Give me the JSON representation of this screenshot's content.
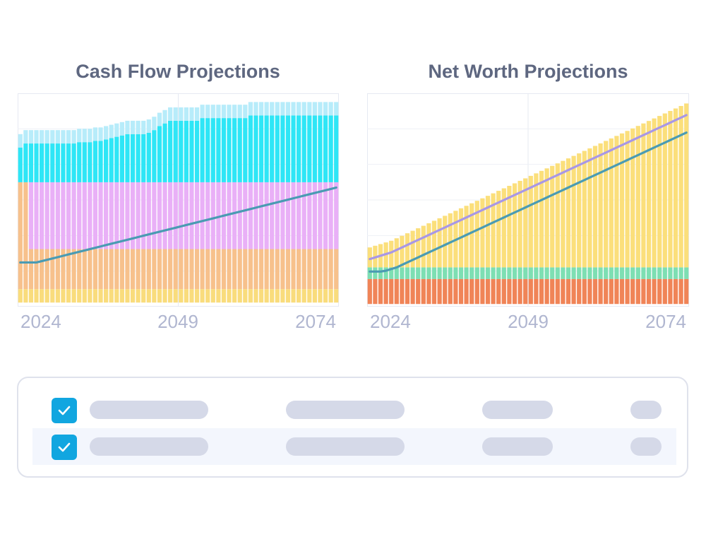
{
  "colors": {
    "accent_checkbox": "#11a6e0",
    "placeholder_bar": "#d5d9e8",
    "selected_row_bg": "#f3f6fd"
  },
  "chart_data": [
    {
      "type": "bar",
      "title": "Cash Flow Projections",
      "subtitle": "",
      "stacked": true,
      "x": [
        2024,
        2025,
        2026,
        2027,
        2028,
        2029,
        2030,
        2031,
        2032,
        2033,
        2034,
        2035,
        2036,
        2037,
        2038,
        2039,
        2040,
        2041,
        2042,
        2043,
        2044,
        2045,
        2046,
        2047,
        2048,
        2049,
        2050,
        2051,
        2052,
        2053,
        2054,
        2055,
        2056,
        2057,
        2058,
        2059,
        2060,
        2061,
        2062,
        2063,
        2064,
        2065,
        2066,
        2067,
        2068,
        2069,
        2070,
        2071,
        2072,
        2073,
        2074,
        2075,
        2076,
        2077,
        2078,
        2079,
        2080,
        2081,
        2082,
        2083
      ],
      "x_ticks": [
        "2024",
        "2049",
        "2074"
      ],
      "grid": true,
      "legend": "none",
      "positive_series": [
        {
          "color": "#f7c18c",
          "values": [
            50,
            50,
            0,
            0,
            0,
            0,
            0,
            0,
            0,
            0,
            0,
            0,
            0,
            0,
            0,
            0,
            0,
            0,
            0,
            0,
            0,
            0,
            0,
            0,
            0,
            0,
            0,
            0,
            0,
            0,
            0,
            0,
            0,
            0,
            0,
            0,
            0,
            0,
            0,
            0,
            0,
            0,
            0,
            0,
            0,
            0,
            0,
            0,
            0,
            0,
            0,
            0,
            0,
            0,
            0,
            0,
            0,
            0,
            0,
            0
          ]
        },
        {
          "color": "#e9b0f7",
          "values": [
            0,
            0,
            50,
            50,
            50,
            50,
            50,
            50,
            50,
            50,
            50,
            50,
            50,
            50,
            50,
            50,
            50,
            50,
            50,
            50,
            50,
            50,
            50,
            50,
            50,
            50,
            50,
            50,
            50,
            50,
            50,
            50,
            50,
            50,
            50,
            50,
            50,
            50,
            50,
            50,
            50,
            50,
            50,
            50,
            50,
            50,
            50,
            50,
            50,
            50,
            50,
            50,
            50,
            50,
            50,
            50,
            50,
            50,
            50,
            50
          ]
        },
        {
          "color": "#2ee6f6",
          "values": [
            26,
            29,
            29,
            29,
            29,
            29,
            29,
            29,
            29,
            29,
            29,
            30,
            30,
            30,
            31,
            31,
            32,
            33,
            34,
            35,
            36,
            36,
            36,
            36,
            37,
            39,
            42,
            44,
            46,
            46,
            46,
            46,
            46,
            46,
            48,
            48,
            48,
            48,
            48,
            48,
            48,
            48,
            48,
            50,
            50,
            50,
            50,
            50,
            50,
            50,
            50,
            50,
            50,
            50,
            50,
            50,
            50,
            50,
            50,
            50
          ]
        },
        {
          "color": "#5ab8f5",
          "values": [
            0,
            0,
            0,
            0,
            0,
            0,
            0,
            0,
            0,
            0,
            0,
            0,
            0,
            0,
            0,
            0,
            0,
            0,
            0,
            0,
            0,
            0,
            0,
            0,
            0,
            0,
            0,
            0,
            0,
            0,
            0,
            0,
            0,
            0,
            0,
            0,
            0,
            0,
            0,
            0,
            0,
            0,
            0,
            0,
            0,
            0,
            0,
            0,
            0,
            0,
            0,
            0,
            0,
            0,
            0,
            0,
            0,
            0,
            0,
            0
          ]
        },
        {
          "color": "#b7ecfa",
          "values": [
            10,
            10,
            10,
            10,
            10,
            10,
            10,
            10,
            10,
            10,
            10,
            10,
            10,
            10,
            10,
            10,
            10,
            10,
            10,
            10,
            10,
            10,
            10,
            10,
            10,
            10,
            10,
            10,
            10,
            10,
            10,
            10,
            10,
            10,
            10,
            10,
            10,
            10,
            10,
            10,
            10,
            10,
            10,
            10,
            10,
            10,
            10,
            10,
            10,
            10,
            10,
            10,
            10,
            10,
            10,
            10,
            10,
            10,
            10,
            10
          ]
        }
      ],
      "negative_series": [
        {
          "color": "#f7c18c",
          "values": [
            30,
            30,
            30,
            30,
            30,
            30,
            30,
            30,
            30,
            30,
            30,
            30,
            30,
            30,
            30,
            30,
            30,
            30,
            30,
            30,
            30,
            30,
            30,
            30,
            30,
            30,
            30,
            30,
            30,
            30,
            30,
            30,
            30,
            30,
            30,
            30,
            30,
            30,
            30,
            30,
            30,
            30,
            30,
            30,
            30,
            30,
            30,
            30,
            30,
            30,
            30,
            30,
            30,
            30,
            30,
            30,
            30,
            30,
            30,
            30
          ]
        },
        {
          "color": "#d97de8",
          "values": [
            0,
            0,
            0,
            0,
            0,
            0,
            0,
            0,
            0,
            0,
            0,
            0,
            0,
            0,
            0,
            0,
            0,
            0,
            0,
            0,
            0,
            0,
            0,
            0,
            0,
            0,
            0,
            0,
            0,
            0,
            0,
            0,
            0,
            0,
            0,
            0,
            0,
            0,
            0,
            0,
            0,
            0,
            0,
            0,
            0,
            0,
            0,
            0,
            0,
            0,
            0,
            0,
            0,
            0,
            0,
            0,
            0,
            0,
            0,
            0
          ]
        },
        {
          "color": "#f9dc7c",
          "values": [
            10,
            10,
            10,
            10,
            10,
            10,
            10,
            10,
            10,
            10,
            10,
            10,
            10,
            10,
            10,
            10,
            10,
            10,
            10,
            10,
            10,
            10,
            10,
            10,
            10,
            10,
            10,
            10,
            10,
            10,
            10,
            10,
            10,
            10,
            10,
            10,
            10,
            10,
            10,
            10,
            10,
            10,
            10,
            10,
            10,
            10,
            10,
            10,
            10,
            10,
            10,
            10,
            10,
            10,
            10,
            10,
            10,
            10,
            10,
            10
          ]
        }
      ],
      "line": {
        "color": "#4a9bb3",
        "values": [
          -10,
          -10,
          -10,
          -10,
          -9,
          -8,
          -7,
          -6,
          -5,
          -4,
          -3,
          -2,
          -1,
          0,
          1,
          2,
          3,
          4,
          5,
          6,
          7,
          8,
          9,
          10,
          11,
          12,
          13,
          14,
          15,
          16,
          17,
          18,
          19,
          20,
          21,
          22,
          23,
          24,
          25,
          26,
          27,
          28,
          29,
          30,
          31,
          32,
          33,
          34,
          35,
          36,
          37,
          38,
          39,
          40,
          41,
          42,
          43,
          44,
          45,
          46
        ]
      }
    },
    {
      "type": "bar",
      "title": "Net Worth Projections",
      "subtitle": "",
      "stacked": true,
      "x": [
        2024,
        2025,
        2026,
        2027,
        2028,
        2029,
        2030,
        2031,
        2032,
        2033,
        2034,
        2035,
        2036,
        2037,
        2038,
        2039,
        2040,
        2041,
        2042,
        2043,
        2044,
        2045,
        2046,
        2047,
        2048,
        2049,
        2050,
        2051,
        2052,
        2053,
        2054,
        2055,
        2056,
        2057,
        2058,
        2059,
        2060,
        2061,
        2062,
        2063,
        2064,
        2065,
        2066,
        2067,
        2068,
        2069,
        2070,
        2071,
        2072,
        2073,
        2074,
        2075,
        2076,
        2077,
        2078,
        2079,
        2080,
        2081,
        2082,
        2083
      ],
      "x_ticks": [
        "2024",
        "2049",
        "2074"
      ],
      "grid": true,
      "legend": "none",
      "positive_series": [
        {
          "color": "#7ddfb3",
          "values": [
            14,
            14,
            14,
            14,
            14,
            14,
            14,
            14,
            14,
            14,
            14,
            14,
            14,
            14,
            14,
            14,
            14,
            14,
            14,
            14,
            14,
            14,
            14,
            14,
            14,
            14,
            14,
            14,
            14,
            14,
            14,
            14,
            14,
            14,
            14,
            14,
            14,
            14,
            14,
            14,
            14,
            14,
            14,
            14,
            14,
            14,
            14,
            14,
            14,
            14,
            14,
            14,
            14,
            14,
            14,
            14,
            14,
            14,
            14,
            14
          ]
        },
        {
          "color": "#fbdf7b",
          "values": [
            24,
            26,
            28,
            30,
            32,
            35,
            38,
            41,
            44,
            47,
            50,
            53,
            56,
            59,
            62,
            65,
            68,
            71,
            74,
            77,
            80,
            83,
            86,
            89,
            92,
            95,
            98,
            101,
            104,
            107,
            110,
            113,
            116,
            119,
            122,
            125,
            128,
            131,
            134,
            137,
            140,
            143,
            146,
            149,
            152,
            155,
            158,
            161,
            164,
            167,
            170,
            173,
            176,
            179,
            182,
            185,
            188,
            191,
            194,
            197
          ]
        }
      ],
      "negative_series": [
        {
          "color": "#f08457",
          "values": [
            30,
            30,
            30,
            30,
            30,
            30,
            30,
            30,
            30,
            30,
            30,
            30,
            30,
            30,
            30,
            30,
            30,
            30,
            30,
            30,
            30,
            30,
            30,
            30,
            30,
            30,
            30,
            30,
            30,
            30,
            30,
            30,
            30,
            30,
            30,
            30,
            30,
            30,
            30,
            30,
            30,
            30,
            30,
            30,
            30,
            30,
            30,
            30,
            30,
            30,
            30,
            30,
            30,
            30,
            30,
            30,
            30,
            30,
            30,
            30
          ]
        }
      ],
      "lines": [
        {
          "color": "#4a9bb3",
          "values": [
            9,
            9,
            9,
            10,
            12,
            14,
            17,
            20,
            23,
            26,
            29,
            32,
            35,
            38,
            41,
            44,
            47,
            50,
            53,
            56,
            59,
            62,
            65,
            68,
            71,
            74,
            77,
            80,
            83,
            86,
            89,
            92,
            95,
            98,
            101,
            104,
            107,
            110,
            113,
            116,
            119,
            122,
            125,
            128,
            131,
            134,
            137,
            140,
            143,
            146,
            149,
            152,
            155,
            158,
            161,
            164,
            167,
            170,
            173,
            176
          ]
        },
        {
          "color": "#a897e6",
          "values": [
            24,
            26,
            28,
            30,
            32,
            35,
            38,
            41,
            44,
            47,
            50,
            53,
            56,
            59,
            62,
            65,
            68,
            71,
            74,
            77,
            80,
            83,
            86,
            89,
            92,
            95,
            98,
            101,
            104,
            107,
            110,
            113,
            116,
            119,
            122,
            125,
            128,
            131,
            134,
            137,
            140,
            143,
            146,
            149,
            152,
            155,
            158,
            161,
            164,
            167,
            170,
            173,
            176,
            179,
            182,
            185,
            188,
            191,
            194,
            197
          ]
        }
      ]
    }
  ],
  "table": {
    "rows": [
      {
        "checked": true,
        "selected": false
      },
      {
        "checked": true,
        "selected": true
      }
    ]
  }
}
